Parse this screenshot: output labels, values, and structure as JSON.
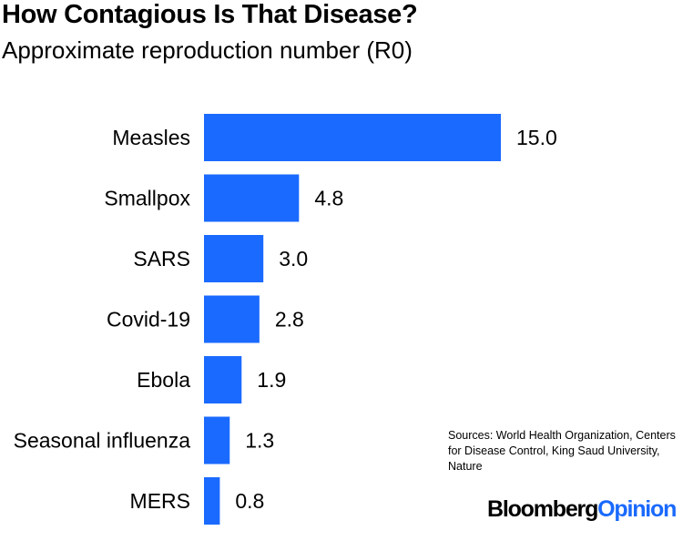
{
  "title": "How Contagious Is That Disease?",
  "subtitle": "Approximate reproduction number (R0)",
  "sources": "Sources: World Health Organization, Centers\nfor Disease Control, King Saud University,\nNature",
  "brand": {
    "part1": "Bloomberg",
    "part2": "Opinion"
  },
  "colors": {
    "bar": "#1a6aff",
    "brand_accent": "#1a6aff"
  },
  "chart_data": {
    "type": "bar",
    "orientation": "horizontal",
    "title": "How Contagious Is That Disease?",
    "subtitle": "Approximate reproduction number (R0)",
    "categories": [
      "Measles",
      "Smallpox",
      "SARS",
      "Covid-19",
      "Ebola",
      "Seasonal influenza",
      "MERS"
    ],
    "values": [
      15.0,
      4.8,
      3.0,
      2.8,
      1.9,
      1.3,
      0.8
    ],
    "value_labels": [
      "15.0",
      "4.8",
      "3.0",
      "2.8",
      "1.9",
      "1.3",
      "0.8"
    ],
    "xlim": [
      0,
      15
    ],
    "grid": false,
    "legend": "none"
  }
}
